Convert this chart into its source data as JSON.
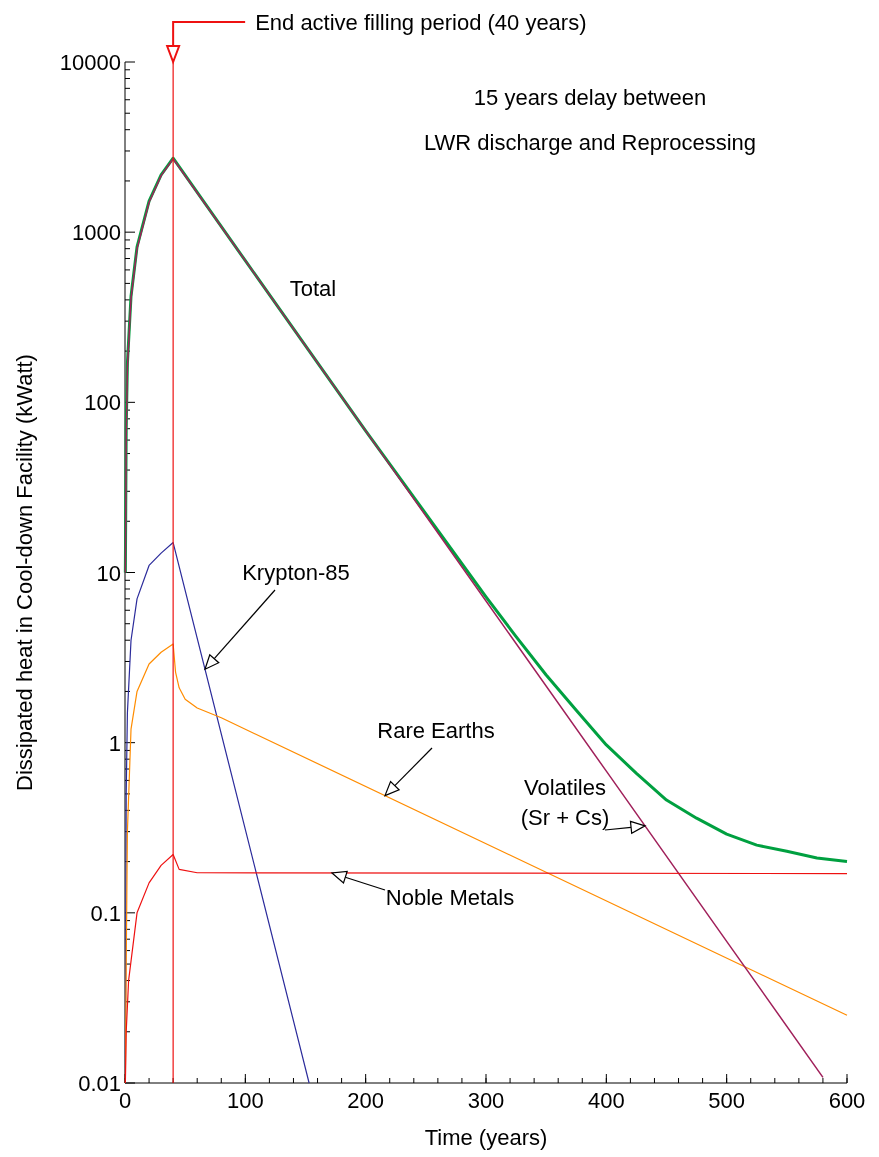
{
  "chart_data": {
    "type": "line",
    "title": "15 years delay between\nLWR discharge and Reprocessing",
    "xlabel": "Time (years)",
    "ylabel": "Dissipated heat in Cool-down Facility (kWatt)",
    "log": "y",
    "xlim": [
      0,
      600
    ],
    "ylim": [
      0.01,
      10000
    ],
    "xticks": [
      0,
      100,
      200,
      300,
      400,
      500,
      600
    ],
    "yticks": [
      0.01,
      0.1,
      1,
      10,
      100,
      1000,
      10000
    ],
    "ref_lines": [
      {
        "axis": "x",
        "value": 40,
        "label": "End active filling period (40 years)",
        "color": "#ee1111"
      }
    ],
    "series": [
      {
        "name": "Total",
        "color": "#00a040",
        "x": [
          0.3,
          1,
          2,
          5,
          10,
          20,
          30,
          40,
          100,
          200,
          300,
          325,
          350,
          375,
          400,
          425,
          450,
          475,
          500,
          525,
          550,
          575,
          600
        ],
        "values": [
          10,
          70,
          170,
          420,
          820,
          1520,
          2170,
          2720,
          680,
          68,
          7.2,
          4.2,
          2.5,
          1.55,
          0.97,
          0.66,
          0.46,
          0.36,
          0.29,
          0.25,
          0.23,
          0.21,
          0.2
        ]
      },
      {
        "name": "Krypton-85",
        "color": "#2b2b9b",
        "x": [
          0.3,
          1,
          2,
          5,
          10,
          20,
          30,
          40,
          153
        ],
        "values": [
          0.01,
          0.5,
          1.5,
          4,
          7,
          11,
          13,
          15,
          0.01
        ]
      },
      {
        "name": "Rare Earths",
        "color": "#ff8c00",
        "x": [
          0.3,
          1,
          2,
          5,
          10,
          20,
          30,
          40,
          42,
          45,
          50,
          60,
          80,
          600
        ],
        "values": [
          0.01,
          0.05,
          0.3,
          1.2,
          2,
          2.9,
          3.4,
          3.8,
          2.6,
          2.1,
          1.8,
          1.6,
          1.4,
          0.025
        ]
      },
      {
        "name": "Volatiles\n(Sr + Cs)",
        "color": "#a0205a",
        "x": [
          0.3,
          1,
          2,
          5,
          10,
          20,
          30,
          40,
          100,
          200,
          300,
          400,
          500,
          580
        ],
        "values": [
          10,
          60,
          160,
          410,
          800,
          1500,
          2150,
          2700,
          680,
          68,
          6.8,
          0.68,
          0.068,
          0.0108
        ]
      },
      {
        "name": "Noble Metals",
        "color": "#ee1111",
        "x": [
          0.3,
          1,
          3,
          10,
          20,
          30,
          40,
          45,
          60,
          600
        ],
        "values": [
          0.01,
          0.02,
          0.04,
          0.1,
          0.15,
          0.19,
          0.22,
          0.18,
          0.172,
          0.17
        ]
      }
    ]
  }
}
